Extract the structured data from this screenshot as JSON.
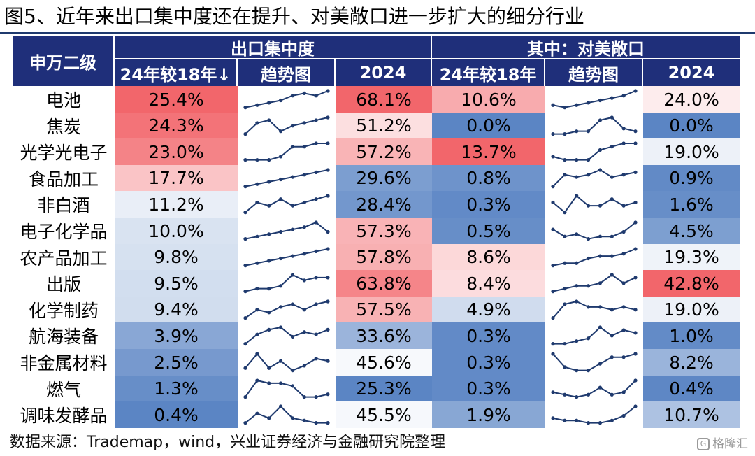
{
  "title": "图5、近年来出口集中度还在提升、对美敞口进一步扩大的细分行业",
  "source": "数据来源：Trademap，wind，兴业证券经济与金融研究院整理",
  "watermark": "格隆汇",
  "colors": {
    "header": "#1f2f7a",
    "high": "#f2666b",
    "low": "#5b85c4",
    "line": "#1f3a6e"
  },
  "chart_data": {
    "type": "table",
    "headers": {
      "row_label": "申万二级",
      "group1": "出口集中度",
      "group2": "其中：对美敞口",
      "columns": [
        "24年较18年↓",
        "趋势图",
        "2024",
        "24年较18年",
        "趋势图",
        "2024"
      ]
    },
    "rows": [
      {
        "name": "电池",
        "g1_change": "25.4%",
        "g1_2024": "68.1%",
        "g2_change": "10.6%",
        "g2_2024": "24.0%",
        "g1_trend": [
          1,
          2,
          3,
          4,
          6,
          7,
          6,
          8
        ],
        "g2_trend": [
          2,
          1,
          2,
          3,
          4,
          5,
          6,
          8
        ]
      },
      {
        "name": "焦炭",
        "g1_change": "24.3%",
        "g1_2024": "51.2%",
        "g2_change": "0.0%",
        "g2_2024": "0.0%",
        "g1_trend": [
          1,
          5,
          6,
          2,
          4,
          5,
          6,
          7
        ],
        "g2_trend": [
          1,
          1,
          2,
          2,
          6,
          7,
          3,
          2
        ]
      },
      {
        "name": "光学光电子",
        "g1_change": "23.0%",
        "g1_2024": "57.2%",
        "g2_change": "13.7%",
        "g2_2024": "19.0%",
        "g1_trend": [
          1,
          1,
          1,
          2,
          5,
          5,
          6,
          6
        ],
        "g2_trend": [
          2,
          1,
          1,
          1,
          4,
          5,
          6,
          6
        ]
      },
      {
        "name": "食品加工",
        "g1_change": "17.7%",
        "g1_2024": "29.6%",
        "g2_change": "0.8%",
        "g2_2024": "0.9%",
        "g1_trend": [
          1,
          2,
          3,
          4,
          5,
          6,
          7,
          8
        ],
        "g2_trend": [
          1,
          6,
          5,
          6,
          8,
          5,
          6,
          7
        ]
      },
      {
        "name": "非白酒",
        "g1_change": "11.2%",
        "g1_2024": "28.4%",
        "g2_change": "0.3%",
        "g2_2024": "1.6%",
        "g1_trend": [
          1,
          4,
          3,
          5,
          3,
          4,
          5,
          6
        ],
        "g2_trend": [
          4,
          1,
          6,
          3,
          3,
          5,
          3,
          4
        ]
      },
      {
        "name": "电子化学品",
        "g1_change": "10.0%",
        "g1_2024": "57.3%",
        "g2_change": "0.5%",
        "g2_2024": "4.5%",
        "g1_trend": [
          1,
          2,
          3,
          4,
          5,
          6,
          8,
          4
        ],
        "g2_trend": [
          5,
          2,
          3,
          1,
          2,
          2,
          4,
          8
        ]
      },
      {
        "name": "农产品加工",
        "g1_change": "9.8%",
        "g1_2024": "57.8%",
        "g2_change": "8.6%",
        "g2_2024": "19.3%",
        "g1_trend": [
          1,
          2,
          3,
          4,
          5,
          6,
          7,
          8
        ],
        "g2_trend": [
          1,
          2,
          2,
          4,
          5,
          5,
          6,
          8
        ]
      },
      {
        "name": "出版",
        "g1_change": "9.5%",
        "g1_2024": "63.8%",
        "g2_change": "8.4%",
        "g2_2024": "42.8%",
        "g1_trend": [
          1,
          2,
          2,
          3,
          7,
          5,
          6,
          6
        ],
        "g2_trend": [
          1,
          2,
          3,
          3,
          4,
          7,
          4,
          6
        ]
      },
      {
        "name": "化学制药",
        "g1_change": "9.4%",
        "g1_2024": "57.5%",
        "g2_change": "4.9%",
        "g2_2024": "19.0%",
        "g1_trend": [
          1,
          4,
          3,
          5,
          6,
          4,
          6,
          7
        ],
        "g2_trend": [
          1,
          6,
          7,
          5,
          5,
          4,
          5,
          4
        ]
      },
      {
        "name": "航海装备",
        "g1_change": "3.9%",
        "g1_2024": "33.6%",
        "g2_change": "0.3%",
        "g2_2024": "1.0%",
        "g1_trend": [
          1,
          5,
          7,
          8,
          4,
          6,
          5,
          7
        ],
        "g2_trend": [
          1,
          1,
          2,
          3,
          7,
          4,
          6,
          5
        ]
      },
      {
        "name": "非金属材料",
        "g1_change": "2.5%",
        "g1_2024": "45.6%",
        "g2_change": "0.3%",
        "g2_2024": "8.2%",
        "g1_trend": [
          2,
          8,
          2,
          5,
          1,
          3,
          6,
          5
        ],
        "g2_trend": [
          7,
          3,
          2,
          2,
          4,
          6,
          6,
          7
        ]
      },
      {
        "name": "燃气",
        "g1_change": "1.3%",
        "g1_2024": "25.3%",
        "g2_change": "0.3%",
        "g2_2024": "0.4%",
        "g1_trend": [
          2,
          8,
          7,
          7,
          6,
          2,
          2,
          3
        ],
        "g2_trend": [
          3,
          2,
          1,
          2,
          5,
          2,
          3,
          8
        ]
      },
      {
        "name": "调味发酵品",
        "g1_change": "0.4%",
        "g1_2024": "45.5%",
        "g2_change": "1.9%",
        "g2_2024": "10.7%",
        "g1_trend": [
          1,
          5,
          3,
          8,
          3,
          2,
          1,
          1
        ],
        "g2_trend": [
          3,
          2,
          2,
          1,
          1,
          2,
          4,
          8
        ]
      }
    ]
  }
}
